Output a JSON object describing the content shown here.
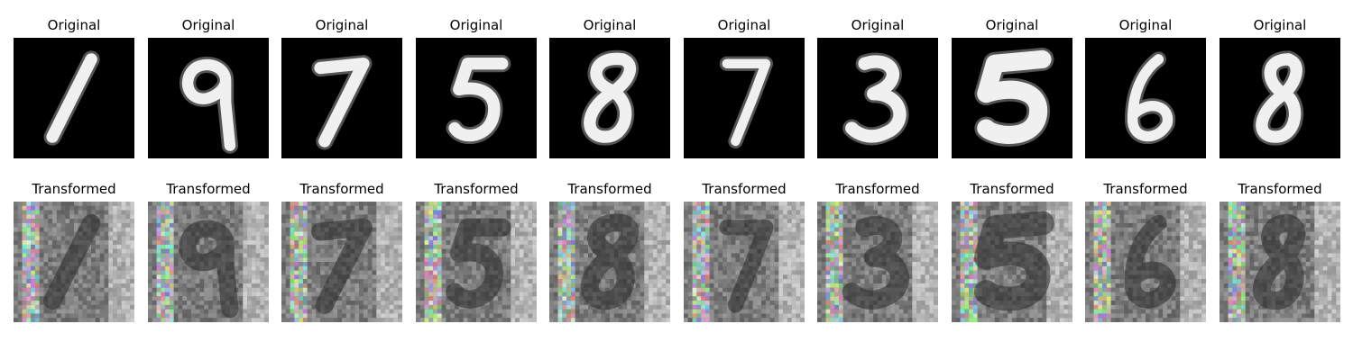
{
  "figure": {
    "row_labels": [
      "Original",
      "Transformed"
    ],
    "columns": [
      {
        "digit": "1",
        "original_title": "Original",
        "transformed_title": "Transformed"
      },
      {
        "digit": "9",
        "original_title": "Original",
        "transformed_title": "Transformed"
      },
      {
        "digit": "7",
        "original_title": "Original",
        "transformed_title": "Transformed"
      },
      {
        "digit": "5",
        "original_title": "Original",
        "transformed_title": "Transformed"
      },
      {
        "digit": "8",
        "original_title": "Original",
        "transformed_title": "Transformed"
      },
      {
        "digit": "7",
        "original_title": "Original",
        "transformed_title": "Transformed"
      },
      {
        "digit": "3",
        "original_title": "Original",
        "transformed_title": "Transformed"
      },
      {
        "digit": "5",
        "original_title": "Original",
        "transformed_title": "Transformed"
      },
      {
        "digit": "6",
        "original_title": "Original",
        "transformed_title": "Transformed"
      },
      {
        "digit": "8",
        "original_title": "Original",
        "transformed_title": "Transformed"
      }
    ]
  },
  "colors": {
    "original_background": "#000000",
    "original_stroke": "#f0f0f0",
    "transformed_background": "#6b6b6b",
    "transformed_stroke": "#2a2a2a"
  }
}
